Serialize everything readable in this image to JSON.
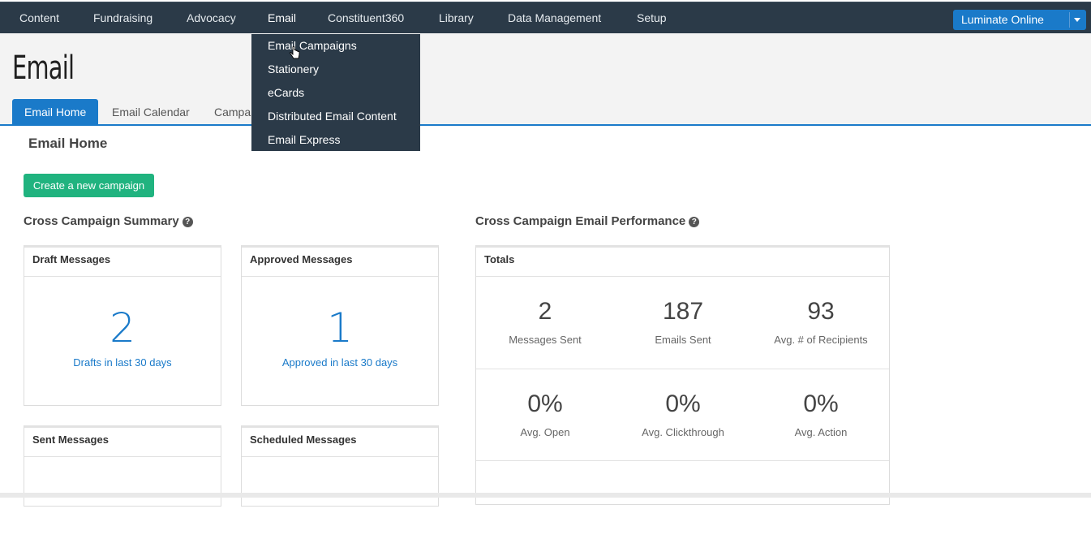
{
  "nav": {
    "items": [
      {
        "label": "Content"
      },
      {
        "label": "Fundraising"
      },
      {
        "label": "Advocacy"
      },
      {
        "label": "Email"
      },
      {
        "label": "Constituent360"
      },
      {
        "label": "Library"
      },
      {
        "label": "Data Management"
      },
      {
        "label": "Setup"
      }
    ],
    "active": "Email",
    "product_select": "Luminate Online"
  },
  "dropdown": {
    "items": [
      {
        "label": "Email Campaigns"
      },
      {
        "label": "Stationery"
      },
      {
        "label": "eCards"
      },
      {
        "label": "Distributed Email Content"
      },
      {
        "label": "Email Express"
      }
    ]
  },
  "page": {
    "title": "Email",
    "tabs": [
      {
        "label": "Email Home",
        "active": true
      },
      {
        "label": "Email Calendar"
      },
      {
        "label": "Campa"
      }
    ],
    "section_heading": "Email Home",
    "create_button": "Create a new campaign"
  },
  "summary": {
    "heading": "Cross Campaign Summary",
    "help_icon": "?",
    "cards": [
      {
        "title": "Draft Messages",
        "value": "2",
        "subtitle": "Drafts in last 30 days"
      },
      {
        "title": "Approved Messages",
        "value": "1",
        "subtitle": "Approved in last 30 days"
      },
      {
        "title": "Sent Messages"
      },
      {
        "title": "Scheduled Messages"
      }
    ]
  },
  "performance": {
    "heading": "Cross Campaign Email Performance",
    "help_icon": "?",
    "totals_label": "Totals",
    "stats": [
      {
        "value": "2",
        "label": "Messages Sent"
      },
      {
        "value": "187",
        "label": "Emails Sent"
      },
      {
        "value": "93",
        "label": "Avg. # of Recipients"
      },
      {
        "value": "0%",
        "label": "Avg. Open"
      },
      {
        "value": "0%",
        "label": "Avg. Clickthrough"
      },
      {
        "value": "0%",
        "label": "Avg. Action"
      }
    ]
  },
  "colors": {
    "nav_bg": "#2b3a48",
    "accent_blue": "#1a7ac9",
    "button_green": "#20b37f"
  }
}
